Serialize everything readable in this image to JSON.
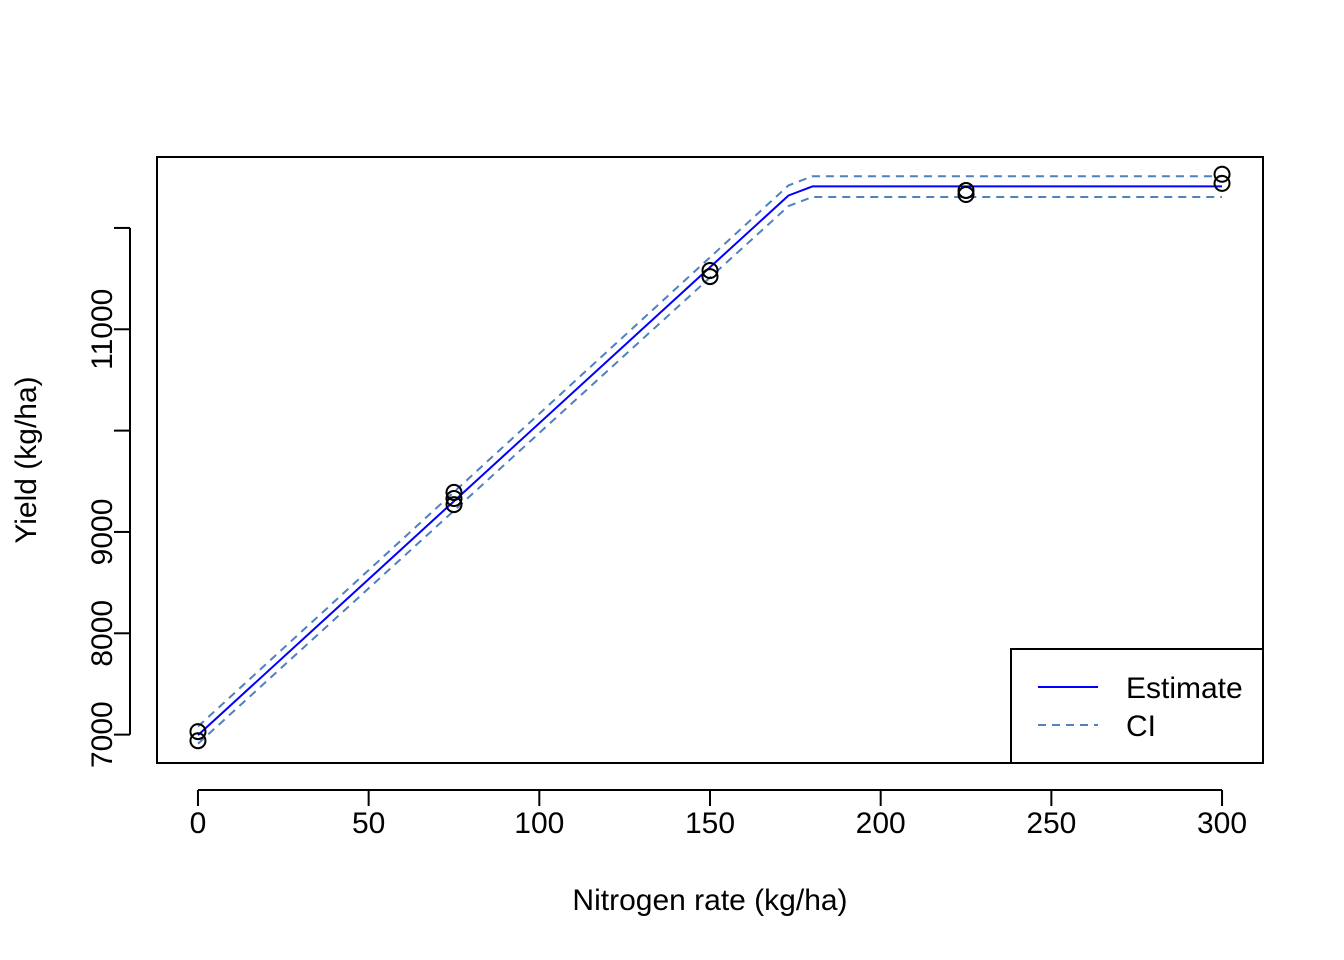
{
  "chart_data": {
    "type": "line",
    "title": "",
    "xlabel": "Nitrogen rate (kg/ha)",
    "ylabel": "Yield (kg/ha)",
    "xlim": [
      -12,
      312
    ],
    "ylim": [
      6720,
      12700
    ],
    "x_ticks": [
      0,
      50,
      100,
      150,
      200,
      250,
      300
    ],
    "y_ticks": [
      7000,
      8000,
      9000,
      10000,
      11000,
      12000
    ],
    "y_tick_labels": [
      "7000",
      "8000",
      "9000",
      "",
      "11000",
      ""
    ],
    "grid": false,
    "legend_position": "bottom-right",
    "points": {
      "x": [
        0,
        0,
        75,
        75,
        75,
        150,
        150,
        225,
        225,
        300,
        300
      ],
      "y": [
        7030,
        6940,
        9390,
        9330,
        9270,
        11580,
        11520,
        12370,
        12330,
        12530,
        12440
      ]
    },
    "series": [
      {
        "name": "Estimate",
        "style": "solid",
        "color": "#0000ff",
        "x": [
          0,
          173,
          180,
          300
        ],
        "y": [
          6995,
          12320,
          12410,
          12410
        ]
      },
      {
        "name": "CI",
        "style": "dashed",
        "color": "#4f81bd",
        "x": [
          0,
          173,
          180,
          300
        ],
        "y": [
          7080,
          12420,
          12510,
          12510
        ]
      },
      {
        "style": "dashed",
        "color": "#4f81bd",
        "x": [
          0,
          173,
          180,
          300
        ],
        "y": [
          6910,
          12215,
          12305,
          12305
        ]
      }
    ]
  }
}
